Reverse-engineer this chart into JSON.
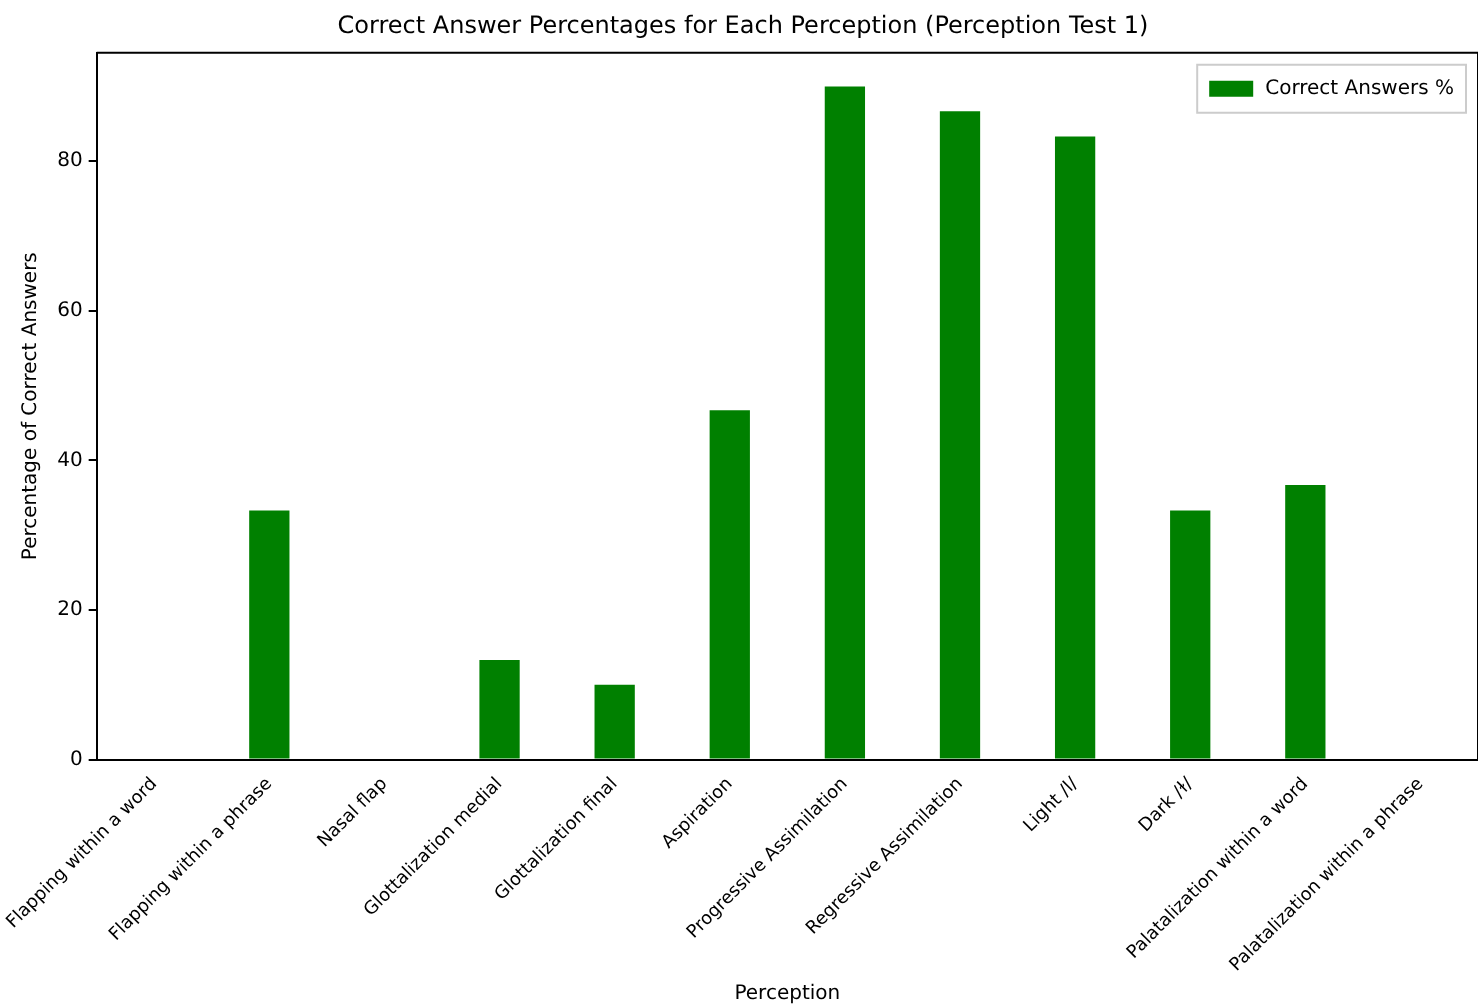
{
  "chart_data": {
    "type": "bar",
    "title": "Correct Answer Percentages for Each Perception (Perception Test 1)",
    "xlabel": "Perception",
    "ylabel": "Percentage of Correct Answers",
    "categories": [
      "Flapping within a word",
      "Flapping within a phrase",
      "Nasal flap",
      "Glottalization medial",
      "Glottalization final",
      "Aspiration",
      "Progressive Assimilation",
      "Regressive Assimilation",
      "Light /l/",
      "Dark /ɫ/",
      "Palatalization within a word",
      "Palatalization within a phrase"
    ],
    "series": [
      {
        "name": "Correct Answers %",
        "color": "#008000",
        "values": [
          0,
          33.3,
          0,
          13.3,
          10,
          46.7,
          90,
          86.7,
          83.3,
          33.3,
          36.7,
          0
        ]
      }
    ],
    "ylim": [
      0,
      94.5
    ],
    "yticks": [
      0,
      20,
      40,
      60,
      80
    ],
    "grid": false,
    "legend": "top right"
  }
}
